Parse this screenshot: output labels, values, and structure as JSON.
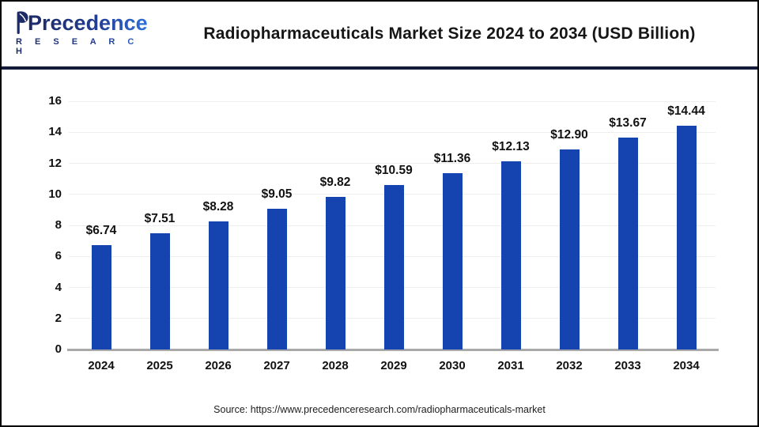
{
  "header": {
    "logo": {
      "wordmark": "Precedence",
      "subtitle": "R E S E A R C H"
    },
    "title": "Radiopharmaceuticals Market Size 2024 to 2034 (USD Billion)"
  },
  "chart_data": {
    "type": "bar",
    "title": "Radiopharmaceuticals Market Size 2024 to 2034 (USD Billion)",
    "categories": [
      "2024",
      "2025",
      "2026",
      "2027",
      "2028",
      "2029",
      "2030",
      "2031",
      "2032",
      "2033",
      "2034"
    ],
    "values": [
      6.74,
      7.51,
      8.28,
      9.05,
      9.82,
      10.59,
      11.36,
      12.13,
      12.9,
      13.67,
      14.44
    ],
    "value_labels": [
      "$6.74",
      "$7.51",
      "$8.28",
      "$9.05",
      "$9.82",
      "$10.59",
      "$11.36",
      "$12.13",
      "$12.90",
      "$13.67",
      "$14.44"
    ],
    "xlabel": "",
    "ylabel": "",
    "ylim": [
      0,
      16
    ],
    "ytick_step": 2,
    "grid": true,
    "legend": false,
    "bar_color": "#1544b0"
  },
  "footer": {
    "source": "Source: https://www.precedenceresearch.com/radiopharmaceuticals-market"
  },
  "colors": {
    "bar": "#1544b0",
    "divider": "#141a3a",
    "gridline": "#eeeeee",
    "baseline": "#a9a9a9",
    "logo_dark": "#1c2a66",
    "logo_light": "#2e70d9"
  }
}
